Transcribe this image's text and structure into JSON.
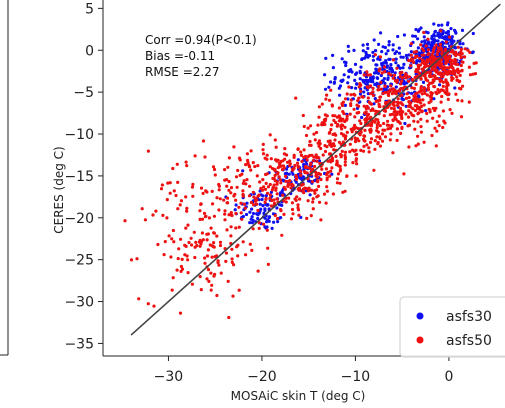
{
  "chart_data": {
    "type": "scatter",
    "xlabel": "MOSAiC skin T (deg C)",
    "ylabel": "CERES (deg C)",
    "xlim": [
      -37,
      6
    ],
    "ylim": [
      -36.5,
      6
    ],
    "xticks": [
      -30,
      -20,
      -10,
      0
    ],
    "yticks": [
      5,
      0,
      -5,
      -10,
      -15,
      -20,
      -25,
      -30,
      -35
    ],
    "stats": {
      "corr": "Corr =0.94(P<0.1)",
      "bias": "Bias =-0.11",
      "rmse": "RMSE =2.27"
    },
    "reference_line": {
      "from": [
        -34,
        -34
      ],
      "to": [
        5.5,
        5.5
      ],
      "color": "#444444"
    },
    "legend_position": "lower-right",
    "series": [
      {
        "name": "asfs30",
        "color": "#1010ee"
      },
      {
        "name": "asfs50",
        "color": "#ee1111"
      }
    ],
    "clusters": [
      {
        "series": "asfs50",
        "x": -26.5,
        "y": -23.5,
        "sx": 3.2,
        "sy": 3.2,
        "n": 140
      },
      {
        "series": "asfs50",
        "x": -23,
        "y": -16,
        "sx": 4.0,
        "sy": 3.0,
        "n": 80
      },
      {
        "series": "asfs50",
        "x": -18,
        "y": -16.5,
        "sx": 3.0,
        "sy": 2.0,
        "n": 160
      },
      {
        "series": "asfs50",
        "x": -14,
        "y": -13,
        "sx": 2.5,
        "sy": 1.8,
        "n": 160
      },
      {
        "series": "asfs50",
        "x": -10,
        "y": -9,
        "sx": 2.5,
        "sy": 2.0,
        "n": 200
      },
      {
        "series": "asfs50",
        "x": -5,
        "y": -6,
        "sx": 2.5,
        "sy": 2.2,
        "n": 300
      },
      {
        "series": "asfs50",
        "x": -1,
        "y": -2,
        "sx": 1.5,
        "sy": 1.5,
        "n": 300
      },
      {
        "series": "asfs30",
        "x": -20,
        "y": -19,
        "sx": 1.5,
        "sy": 1.3,
        "n": 90
      },
      {
        "series": "asfs30",
        "x": -16,
        "y": -15,
        "sx": 1.5,
        "sy": 1.3,
        "n": 90
      },
      {
        "series": "asfs30",
        "x": -7,
        "y": -3,
        "sx": 2.5,
        "sy": 2.0,
        "n": 300
      },
      {
        "series": "asfs30",
        "x": -1,
        "y": 0,
        "sx": 1.2,
        "sy": 1.5,
        "n": 250
      }
    ]
  }
}
